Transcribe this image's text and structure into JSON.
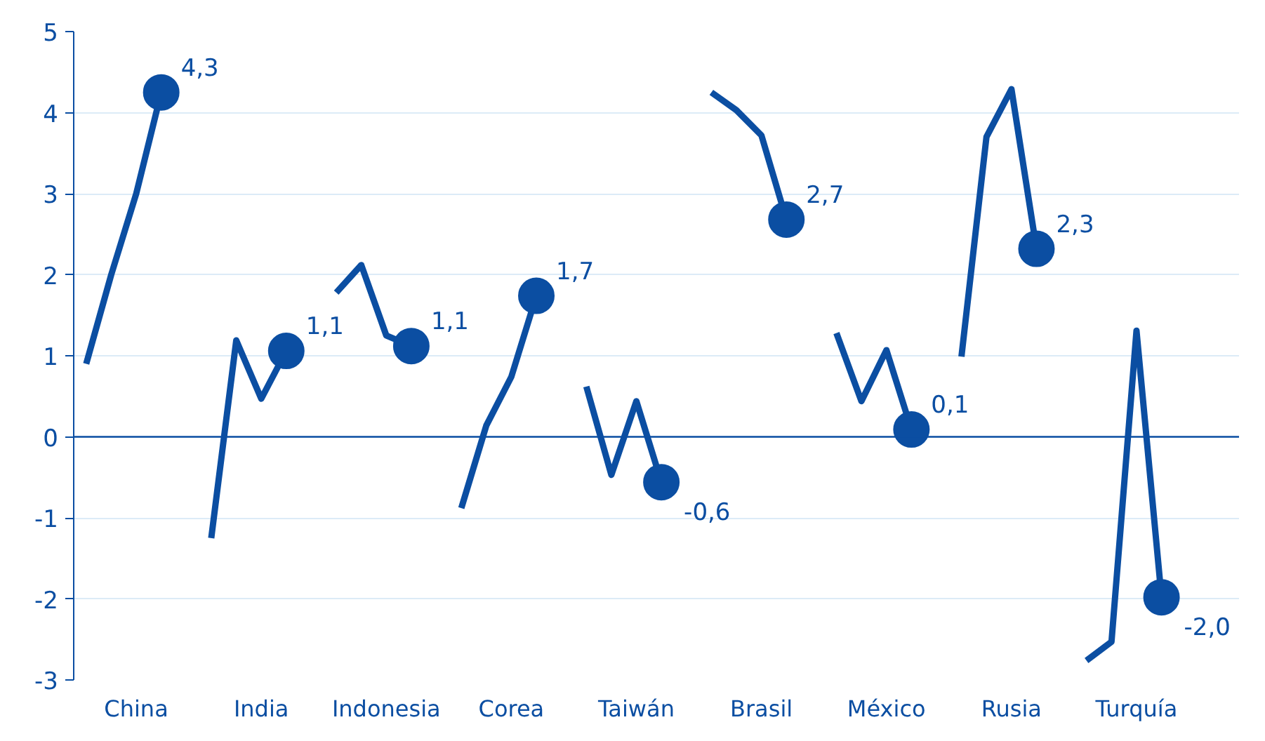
{
  "chart_data": {
    "type": "line",
    "categories": [
      null,
      null,
      "China",
      null,
      null,
      null,
      null,
      "India",
      null,
      null,
      null,
      null,
      "Indonesia",
      null,
      null,
      null,
      null,
      "Corea",
      null,
      null,
      null,
      null,
      "Taiwán",
      null,
      null,
      null,
      null,
      "Brasil",
      null,
      null,
      null,
      null,
      "México",
      null,
      null,
      null,
      null,
      "Rusia",
      null,
      null,
      null,
      null,
      "Turquía",
      null,
      null
    ],
    "ylim": [
      -3,
      5
    ],
    "yticks": [
      -3,
      -2,
      -1,
      0,
      1,
      2,
      3,
      4,
      5
    ],
    "grid": "y",
    "line_style": "solid",
    "ref_lines": [
      {
        "axis": "y",
        "value": 0,
        "color": "#0b4ea2"
      }
    ],
    "series": [
      {
        "color": "#0b4ea2",
        "values": [
          0.9,
          2.0,
          3.0,
          4.25,
          null,
          -1.25,
          1.19,
          0.47,
          1.06,
          null,
          1.78,
          2.12,
          1.25,
          1.12,
          null,
          -0.88,
          0.14,
          0.74,
          1.74,
          null,
          0.62,
          -0.47,
          0.44,
          -0.56,
          null,
          4.25,
          4.03,
          3.72,
          2.68,
          null,
          1.28,
          0.44,
          1.07,
          0.09,
          null,
          0.99,
          3.7,
          4.29,
          2.32,
          null,
          -2.76,
          -2.53,
          1.31,
          -1.98,
          null
        ]
      },
      {
        "type": "scatter",
        "marker": "circle",
        "color": "#0b4ea2",
        "values": [
          null,
          null,
          null,
          4.25,
          null,
          null,
          null,
          null,
          1.06,
          null,
          null,
          null,
          null,
          1.12,
          null,
          null,
          null,
          null,
          1.74,
          null,
          null,
          null,
          null,
          -0.56,
          null,
          null,
          null,
          null,
          2.68,
          null,
          null,
          null,
          null,
          0.09,
          null,
          null,
          null,
          null,
          2.32,
          null,
          null,
          null,
          null,
          -1.98,
          null
        ],
        "value_labels": [
          null,
          null,
          null,
          "4,3",
          null,
          null,
          null,
          null,
          "1,1",
          null,
          null,
          null,
          null,
          "1,1",
          null,
          null,
          null,
          null,
          "1,7",
          null,
          null,
          null,
          null,
          "-0,6",
          null,
          null,
          null,
          null,
          "2,7",
          null,
          null,
          null,
          null,
          "0,1",
          null,
          null,
          null,
          null,
          "2,3",
          null,
          null,
          null,
          null,
          "-2,0",
          null
        ]
      }
    ]
  }
}
